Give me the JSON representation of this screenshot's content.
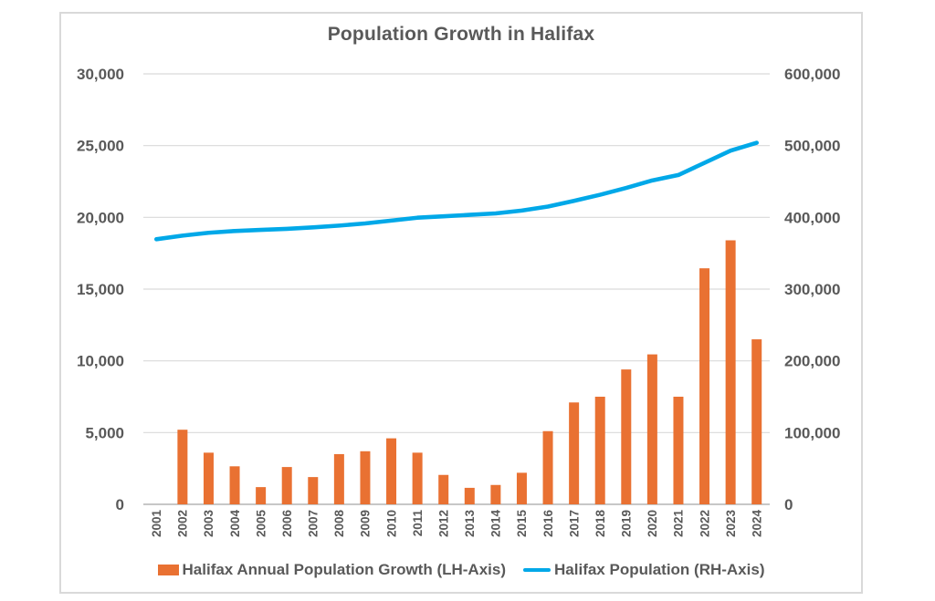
{
  "chart": {
    "title": "Population Growth in Halifax",
    "legend": [
      {
        "label": "Halifax Annual Population Growth (LH-Axis)",
        "marker": "bar-swatch-icon",
        "color": "#E97132"
      },
      {
        "label": "Halifax Population (RH-Axis)",
        "marker": "line-swatch-icon",
        "color": "#00A8E8"
      }
    ]
  },
  "chart_data": {
    "type": "bar+line combo",
    "title": "Population Growth in Halifax",
    "categories": [
      "2001",
      "2002",
      "2003",
      "2004",
      "2005",
      "2006",
      "2007",
      "2008",
      "2009",
      "2010",
      "2011",
      "2012",
      "2013",
      "2014",
      "2015",
      "2016",
      "2017",
      "2018",
      "2019",
      "2020",
      "2021",
      "2022",
      "2023",
      "2024"
    ],
    "series": [
      {
        "name": "Halifax Annual Population Growth (LH-Axis)",
        "type": "bar",
        "axis": "left",
        "color": "#E97132",
        "values": [
          0,
          5200,
          3600,
          2650,
          1200,
          2600,
          1900,
          3500,
          3700,
          4600,
          3600,
          2050,
          1150,
          1350,
          2200,
          5100,
          7100,
          7500,
          9400,
          10450,
          7500,
          16450,
          18400,
          11500
        ]
      },
      {
        "name": "Halifax Population (RH-Axis)",
        "type": "line",
        "axis": "right",
        "color": "#00A8E8",
        "values": [
          369500,
          374500,
          378500,
          381000,
          382500,
          384000,
          386000,
          388500,
          391500,
          395500,
          399500,
          401500,
          403500,
          405500,
          409500,
          415000,
          423000,
          431500,
          441000,
          451500,
          459000,
          476000,
          493000,
          504000
        ]
      }
    ],
    "left_axis": {
      "min": 0,
      "max": 30000,
      "step": 5000,
      "tick_labels": [
        "0",
        "5,000",
        "10,000",
        "15,000",
        "20,000",
        "25,000",
        "30,000"
      ]
    },
    "right_axis": {
      "min": 0,
      "max": 600000,
      "step": 100000,
      "tick_labels": [
        "0",
        "100,000",
        "200,000",
        "300,000",
        "400,000",
        "500,000",
        "600,000"
      ]
    },
    "grid": "horizontal",
    "legend_position": "bottom",
    "styles": {
      "gridline_color": "#D9D9D9",
      "axis_line_color": "#BFBFBF",
      "label_color": "#595959",
      "frame_border_color": "#D9D9D9",
      "background": "#FFFFFF"
    }
  }
}
